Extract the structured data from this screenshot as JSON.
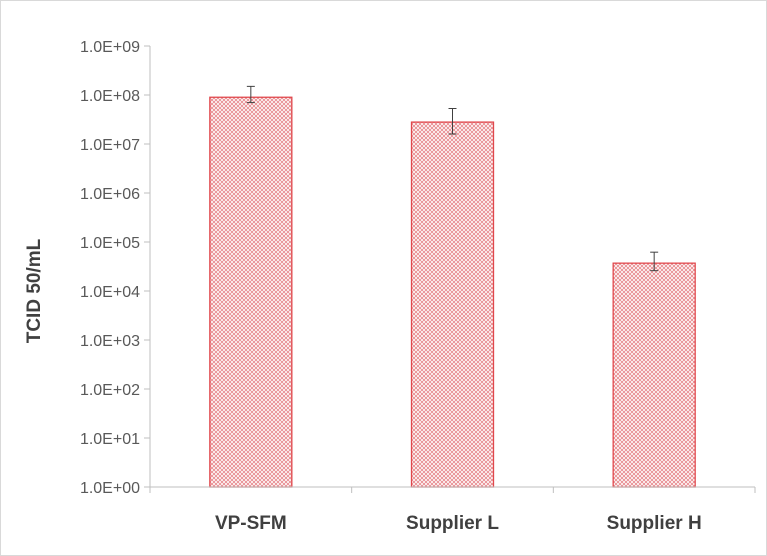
{
  "chart_data": {
    "type": "bar",
    "title": "",
    "xlabel": "",
    "ylabel": "TCID 50/mL",
    "yscale": "log",
    "ylim": [
      1,
      1000000000
    ],
    "yticks": [
      "1.0E+00",
      "1.0E+01",
      "1.0E+02",
      "1.0E+03",
      "1.0E+04",
      "1.0E+05",
      "1.0E+06",
      "1.0E+07",
      "1.0E+08",
      "1.0E+09"
    ],
    "categories": [
      "VP-SFM",
      "Supplier L",
      "Supplier H"
    ],
    "values": [
      90000000,
      28000000,
      37000
    ],
    "error_low": [
      70000000,
      16000000,
      26000
    ],
    "error_high": [
      150000000,
      53000000,
      62000
    ],
    "grid": false,
    "legend": "none",
    "colors": {
      "bar_edge": "#e0474c",
      "hatch": "#e88a8e",
      "axis": "#bfbfbf",
      "error": "#404040"
    }
  }
}
